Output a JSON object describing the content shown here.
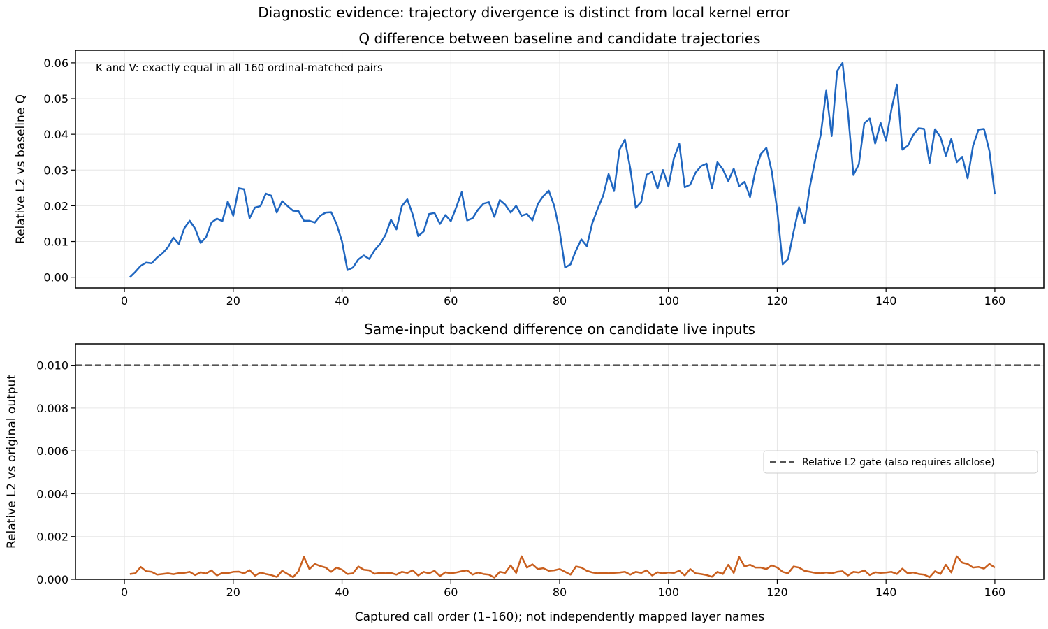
{
  "figure": {
    "suptitle": "Diagnostic evidence: trajectory divergence is distinct from local kernel error"
  },
  "chart_data": [
    {
      "type": "line",
      "title": "Q difference between baseline and candidate trajectories",
      "xlabel": "",
      "ylabel": "Relative L2 vs baseline Q",
      "xlim": [
        -9,
        169
      ],
      "ylim": [
        -0.003,
        0.0635
      ],
      "xticks": [
        0,
        20,
        40,
        60,
        80,
        100,
        120,
        140,
        160
      ],
      "yticks": [
        0.0,
        0.01,
        0.02,
        0.03,
        0.04,
        0.05,
        0.06
      ],
      "ytick_labels": [
        "0.00",
        "0.01",
        "0.02",
        "0.03",
        "0.04",
        "0.05",
        "0.06"
      ],
      "grid": true,
      "annotation": "K and V: exactly equal in all 160 ordinal-matched pairs",
      "x_start": 1,
      "series": [
        {
          "color": "#1f66c0",
          "values": [
            0.0,
            0.0015,
            0.0032,
            0.0041,
            0.0039,
            0.0055,
            0.0067,
            0.0084,
            0.0111,
            0.0093,
            0.0137,
            0.0158,
            0.0136,
            0.0096,
            0.0112,
            0.0153,
            0.0164,
            0.0157,
            0.0212,
            0.0172,
            0.0249,
            0.0246,
            0.0165,
            0.0195,
            0.0199,
            0.0234,
            0.0228,
            0.0181,
            0.0213,
            0.0199,
            0.0186,
            0.0185,
            0.0158,
            0.0158,
            0.0153,
            0.0172,
            0.0181,
            0.0182,
            0.0149,
            0.01,
            0.002,
            0.0027,
            0.005,
            0.0061,
            0.0051,
            0.0076,
            0.0093,
            0.0119,
            0.0161,
            0.0134,
            0.0199,
            0.0218,
            0.0175,
            0.0115,
            0.0128,
            0.0177,
            0.018,
            0.0149,
            0.0174,
            0.0157,
            0.0196,
            0.0238,
            0.0159,
            0.0165,
            0.0189,
            0.0206,
            0.021,
            0.0169,
            0.0216,
            0.0203,
            0.0181,
            0.02,
            0.0172,
            0.0177,
            0.0159,
            0.0205,
            0.0227,
            0.0242,
            0.02,
            0.0129,
            0.0027,
            0.0036,
            0.0075,
            0.0106,
            0.0087,
            0.0151,
            0.0192,
            0.0228,
            0.0289,
            0.0241,
            0.0357,
            0.0385,
            0.0303,
            0.0194,
            0.0211,
            0.0287,
            0.0295,
            0.0248,
            0.03,
            0.0254,
            0.0333,
            0.0373,
            0.0252,
            0.0259,
            0.0293,
            0.0311,
            0.0318,
            0.0249,
            0.0322,
            0.0302,
            0.0269,
            0.0304,
            0.0255,
            0.0267,
            0.0224,
            0.0299,
            0.0345,
            0.0362,
            0.0296,
            0.0187,
            0.0036,
            0.0051,
            0.0127,
            0.0196,
            0.0152,
            0.0254,
            0.033,
            0.0399,
            0.0522,
            0.0395,
            0.0577,
            0.06,
            0.0461,
            0.0286,
            0.0316,
            0.0431,
            0.0444,
            0.0374,
            0.0432,
            0.0382,
            0.047,
            0.0539,
            0.0357,
            0.0368,
            0.0398,
            0.0417,
            0.0415,
            0.032,
            0.0414,
            0.0392,
            0.034,
            0.0387,
            0.0322,
            0.0337,
            0.0277,
            0.0368,
            0.0413,
            0.0415,
            0.0353,
            0.0232
          ]
        }
      ]
    },
    {
      "type": "line",
      "title": "Same-input backend difference on candidate live inputs",
      "xlabel": "Captured call order (1–160); not independently mapped layer names",
      "ylabel": "Relative L2 vs original output",
      "xlim": [
        -9,
        169
      ],
      "ylim": [
        0.0,
        0.011
      ],
      "xticks": [
        0,
        20,
        40,
        60,
        80,
        100,
        120,
        140,
        160
      ],
      "yticks": [
        0.0,
        0.002,
        0.004,
        0.006,
        0.008,
        0.01
      ],
      "ytick_labels": [
        "0.000",
        "0.002",
        "0.004",
        "0.006",
        "0.008",
        "0.010"
      ],
      "grid": true,
      "legend": {
        "position": "center-right",
        "entries": [
          "Relative L2 gate (also requires allclose)"
        ]
      },
      "reference_line": {
        "y": 0.01,
        "style": "dashed",
        "color": "#555555",
        "label": "Relative L2 gate (also requires allclose)"
      },
      "x_start": 1,
      "series": [
        {
          "color": "#c95f1e",
          "values": [
            0.00025,
            0.00028,
            0.00058,
            0.00038,
            0.00035,
            0.00022,
            0.00025,
            0.00028,
            0.00024,
            0.00029,
            0.0003,
            0.00035,
            0.0002,
            0.00033,
            0.00027,
            0.00042,
            0.00018,
            0.0003,
            0.00029,
            0.00035,
            0.00036,
            0.00028,
            0.00043,
            0.00017,
            0.00032,
            0.00025,
            0.0002,
            0.00011,
            0.0004,
            0.00025,
            0.0001,
            0.00038,
            0.00105,
            0.00048,
            0.00072,
            0.00062,
            0.00055,
            0.00035,
            0.00055,
            0.00045,
            0.00025,
            0.00028,
            0.0006,
            0.00045,
            0.00042,
            0.00026,
            0.0003,
            0.00028,
            0.0003,
            0.00022,
            0.00035,
            0.0003,
            0.00042,
            0.00018,
            0.00035,
            0.00028,
            0.0004,
            0.00015,
            0.00033,
            0.00028,
            0.00032,
            0.00038,
            0.00042,
            0.00022,
            0.00032,
            0.00025,
            0.00022,
            8e-05,
            0.00035,
            0.0003,
            0.00065,
            0.0003,
            0.00108,
            0.00055,
            0.0007,
            0.00048,
            0.00052,
            0.0004,
            0.00042,
            0.00048,
            0.00035,
            0.00022,
            0.0006,
            0.00055,
            0.0004,
            0.00032,
            0.00028,
            0.0003,
            0.00028,
            0.0003,
            0.00032,
            0.00035,
            0.00022,
            0.00035,
            0.0003,
            0.00042,
            0.00018,
            0.00033,
            0.00028,
            0.00032,
            0.0003,
            0.0004,
            0.00018,
            0.00048,
            0.00028,
            0.00025,
            0.0002,
            0.00012,
            0.00035,
            0.00025,
            0.00068,
            0.0003,
            0.00105,
            0.0006,
            0.00068,
            0.00055,
            0.00055,
            0.00048,
            0.00065,
            0.00055,
            0.00035,
            0.00028,
            0.0006,
            0.00055,
            0.0004,
            0.00035,
            0.0003,
            0.00028,
            0.00032,
            0.00028,
            0.00035,
            0.00038,
            0.00018,
            0.00035,
            0.00032,
            0.00042,
            0.0002,
            0.00033,
            0.0003,
            0.00032,
            0.00035,
            0.00025,
            0.0005,
            0.00028,
            0.00032,
            0.00025,
            0.00022,
            0.0001,
            0.00038,
            0.00025,
            0.00068,
            0.00032,
            0.00108,
            0.00078,
            0.00072,
            0.00055,
            0.00058,
            0.0005,
            0.00072,
            0.00055
          ]
        }
      ]
    }
  ]
}
